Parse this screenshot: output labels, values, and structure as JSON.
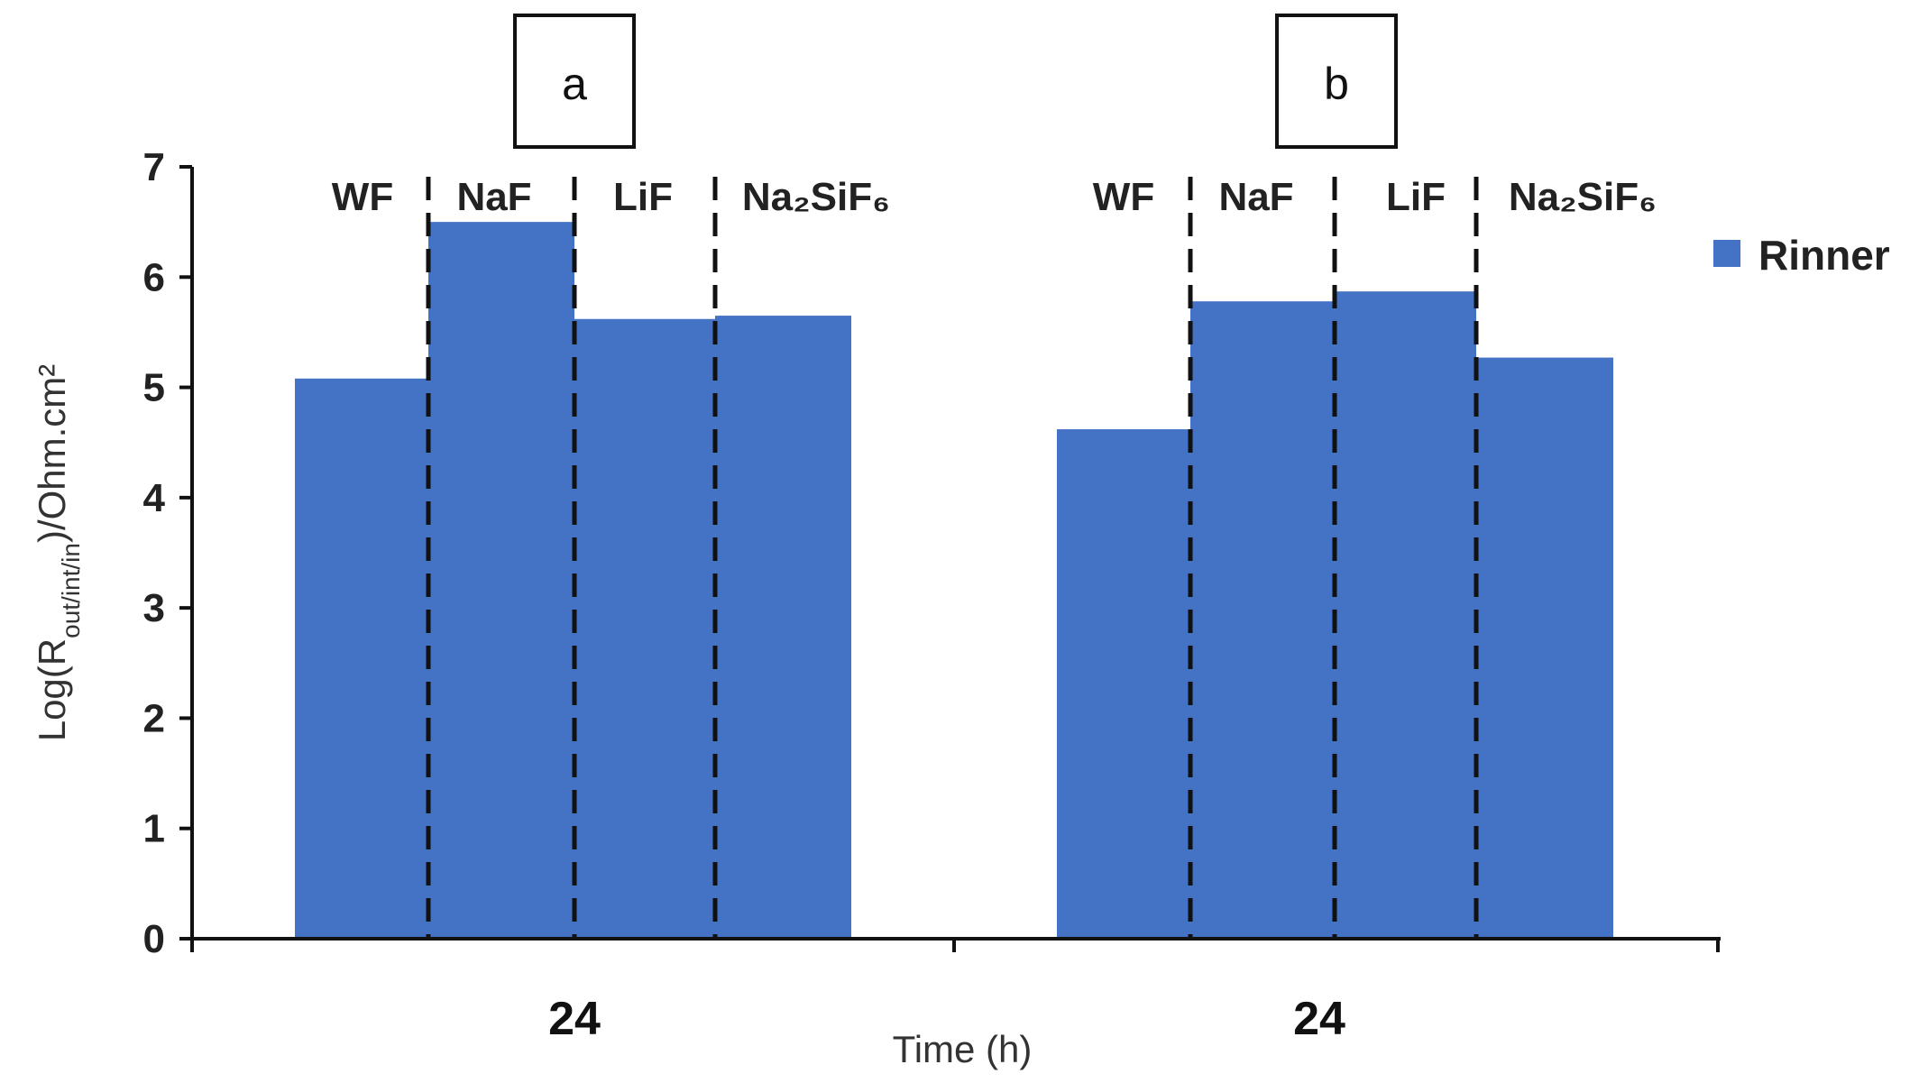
{
  "chart_data": {
    "type": "bar",
    "ylabel": "Log(Rₒᵤₜ/ᵢₙₜ/ᵢₙ)/Ohm.cm²",
    "ylabel_parts": {
      "prefix": "Log(R",
      "subscript": "out/int/in",
      "suffix": ")/Ohm.cm²"
    },
    "xlabel": "Time (h)",
    "ylim": [
      0,
      7
    ],
    "yticks": [
      "0",
      "1",
      "2",
      "3",
      "4",
      "5",
      "6",
      "7"
    ],
    "bar_color": "#4472C4",
    "legend": {
      "label": "Rinner",
      "color": "#4472C4",
      "position": "right"
    },
    "groups": [
      {
        "panel": "a",
        "time_label": "24",
        "categories": [
          "WF",
          "NaF",
          "LiF",
          "Na2SiF6"
        ],
        "category_labels": [
          {
            "main": "WF"
          },
          {
            "main": "NaF"
          },
          {
            "main": "LiF"
          },
          {
            "main": "Na₂SiF₆"
          }
        ],
        "values": [
          5.08,
          6.5,
          5.62,
          5.65
        ]
      },
      {
        "panel": "b",
        "time_label": "24",
        "categories": [
          "WF",
          "NaF",
          "LiF",
          "Na2SiF6"
        ],
        "category_labels": [
          {
            "main": "WF"
          },
          {
            "main": "NaF"
          },
          {
            "main": "LiF"
          },
          {
            "main": "Na₂SiF₆"
          }
        ],
        "values": [
          4.62,
          5.78,
          5.87,
          5.27
        ]
      }
    ]
  }
}
